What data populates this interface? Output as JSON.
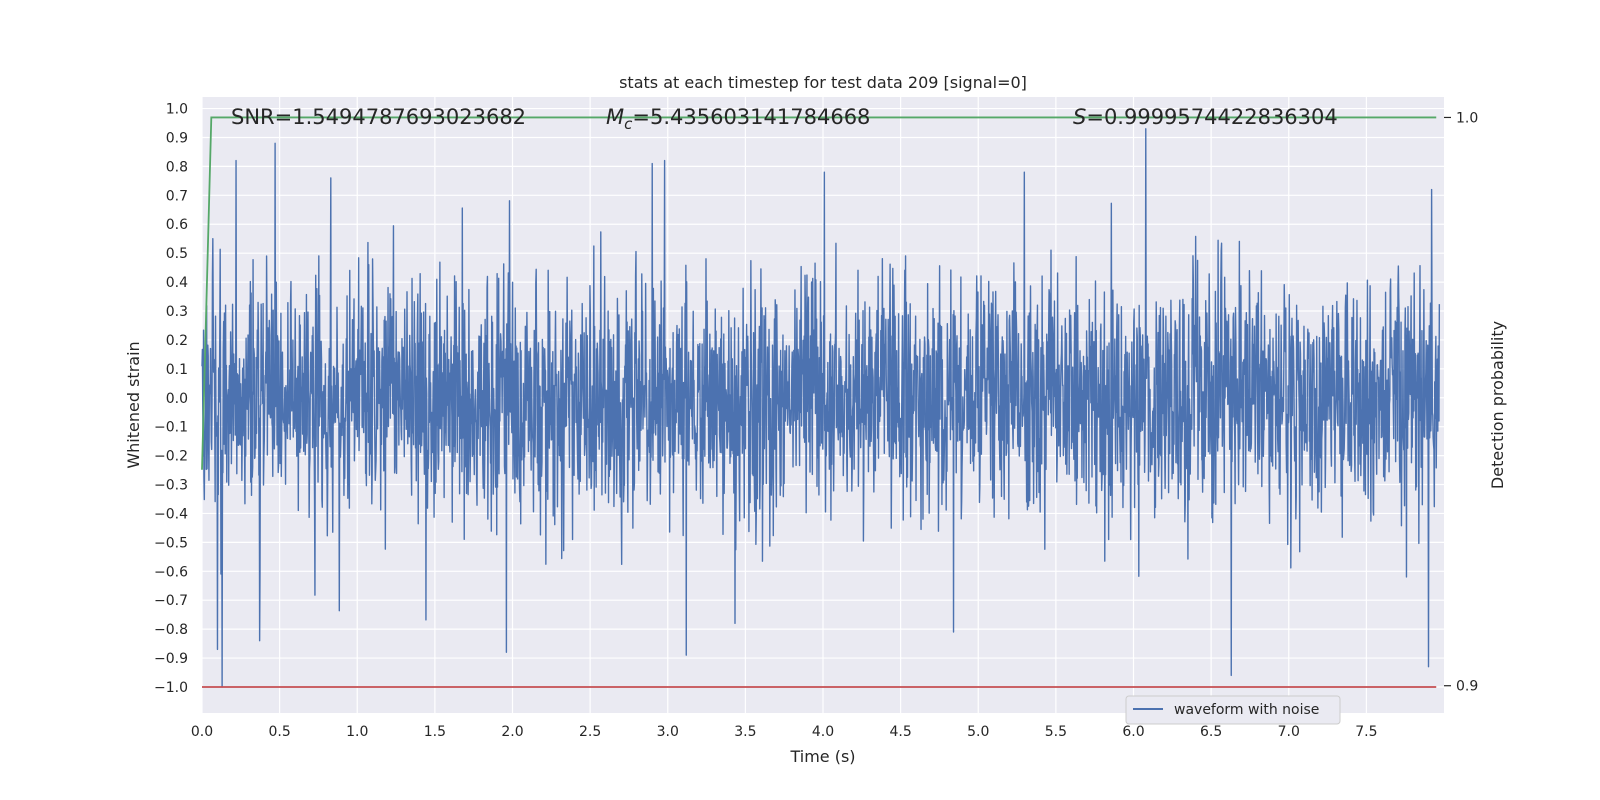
{
  "chart_data": {
    "type": "line",
    "title": "stats at each timestep for test data 209 [signal=0]",
    "xlabel": "Time (s)",
    "ylabel": "Whitened strain",
    "y2label": "Detection probability",
    "xlim": [
      0.0,
      8.0
    ],
    "ylim": [
      -1.09,
      1.04
    ],
    "y2lim": [
      0.8952,
      1.0036
    ],
    "xticks": [
      "0.0",
      "0.5",
      "1.0",
      "1.5",
      "2.0",
      "2.5",
      "3.0",
      "3.5",
      "4.0",
      "4.5",
      "5.0",
      "5.5",
      "6.0",
      "6.5",
      "7.0",
      "7.5"
    ],
    "yticks": [
      "1.0",
      "0.9",
      "0.8",
      "0.7",
      "0.6",
      "0.5",
      "0.4",
      "0.3",
      "0.2",
      "0.1",
      "0.0",
      "−0.1",
      "−0.2",
      "−0.3",
      "−0.4",
      "−0.5",
      "−0.6",
      "−0.7",
      "−0.8",
      "−0.9",
      "−1.0"
    ],
    "y2ticks": [
      "1.0",
      "0.9"
    ],
    "grid": true,
    "legend_position": "lower-center",
    "annotations": {
      "snr": "SNR=1.5494787693023682",
      "mc_symbol": "M",
      "mc_sub": "c",
      "mc_value": "=5.435603141784668",
      "s_symbol": "S",
      "s_value": "=0.9999574422836304"
    },
    "series": [
      {
        "name": "waveform with noise",
        "axis": "left",
        "color": "#4c72b0",
        "amplitude_envelope": [
          -0.55,
          0.55
        ],
        "peaks": [
          {
            "x": 0.07,
            "y": 0.55
          },
          {
            "x": 0.1,
            "y": -0.87
          },
          {
            "x": 0.13,
            "y": -1.0
          },
          {
            "x": 0.22,
            "y": 0.82
          },
          {
            "x": 0.37,
            "y": -0.84
          },
          {
            "x": 0.47,
            "y": 0.88
          },
          {
            "x": 0.83,
            "y": 0.76
          },
          {
            "x": 1.96,
            "y": -0.88
          },
          {
            "x": 2.9,
            "y": 0.81
          },
          {
            "x": 2.98,
            "y": 0.82
          },
          {
            "x": 3.12,
            "y": -0.89
          },
          {
            "x": 4.84,
            "y": -0.81
          },
          {
            "x": 6.08,
            "y": 0.93
          },
          {
            "x": 6.63,
            "y": -0.96
          },
          {
            "x": 7.9,
            "y": -0.93
          },
          {
            "x": 7.92,
            "y": 0.72
          }
        ]
      },
      {
        "name": "",
        "axis": "right",
        "color": "#55a868",
        "x": [
          0.0,
          0.06,
          7.95
        ],
        "y": [
          0.938,
          1.0,
          1.0
        ]
      },
      {
        "name": "",
        "axis": "left",
        "color": "#c44e52",
        "x": [
          0.0,
          7.95
        ],
        "y": [
          -1.0,
          -1.0
        ]
      }
    ]
  }
}
